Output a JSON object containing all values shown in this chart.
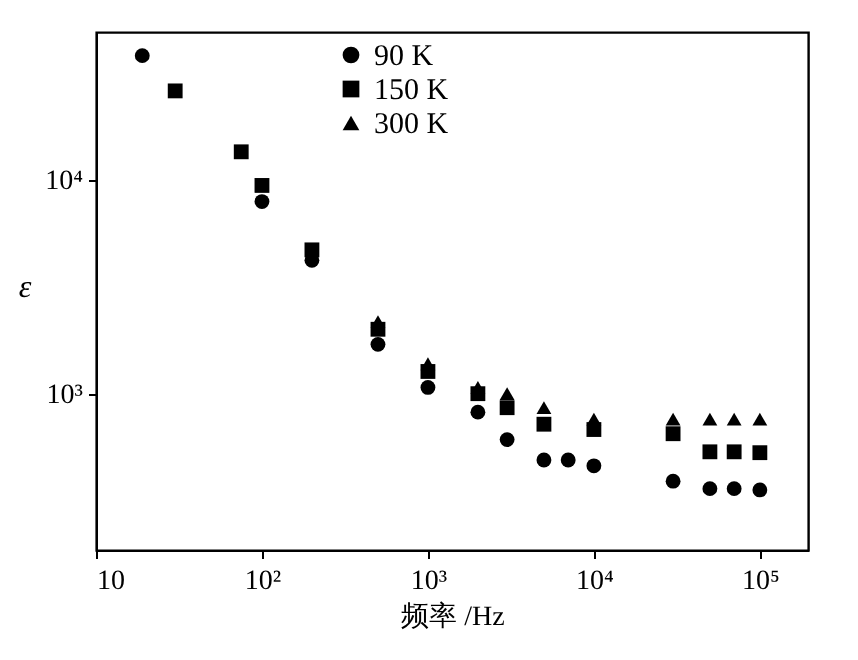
{
  "chart_data": {
    "type": "scatter",
    "xlabel": "频率 /Hz",
    "ylabel": "ε",
    "log": "xy",
    "legend": "top",
    "grid": false,
    "xlim": [
      10,
      195000
    ],
    "ylim": [
      186,
      49000
    ],
    "xticks": [
      10,
      {
        "value": 100,
        "label": "10²"
      },
      {
        "value": 1000,
        "label": "10³"
      },
      {
        "value": 10000,
        "label": "10⁴"
      },
      {
        "value": 100000,
        "label": "10⁵"
      }
    ],
    "yticks": [
      {
        "value": 1000,
        "label": "10³"
      },
      {
        "value": 10000,
        "label": "10⁴"
      }
    ],
    "series": [
      {
        "name": "90 K",
        "color": "#000000",
        "marker": "circle",
        "x": [
          19,
          100,
          200,
          500,
          1000,
          2000,
          3000,
          5000,
          7000,
          10000,
          30000,
          50000,
          70000,
          100000
        ],
        "values": [
          38000,
          7900,
          4200,
          1700,
          1070,
          820,
          610,
          490,
          490,
          460,
          390,
          360,
          360,
          355
        ]
      },
      {
        "name": "150 K",
        "color": "#000000",
        "marker": "square",
        "x": [
          30,
          75,
          100,
          200,
          500,
          1000,
          2000,
          3000,
          5000,
          10000,
          30000,
          50000,
          70000,
          100000
        ],
        "values": [
          26000,
          13500,
          9400,
          4700,
          2000,
          1270,
          1000,
          860,
          720,
          680,
          650,
          535,
          535,
          530
        ]
      },
      {
        "name": "300 K",
        "color": "#000000",
        "marker": "triangle",
        "x": [
          500,
          1000,
          2000,
          3000,
          5000,
          10000,
          30000,
          50000,
          70000,
          100000
        ],
        "values": [
          2170,
          1380,
          1070,
          1000,
          860,
          760,
          760,
          760,
          760,
          760
        ]
      }
    ]
  }
}
